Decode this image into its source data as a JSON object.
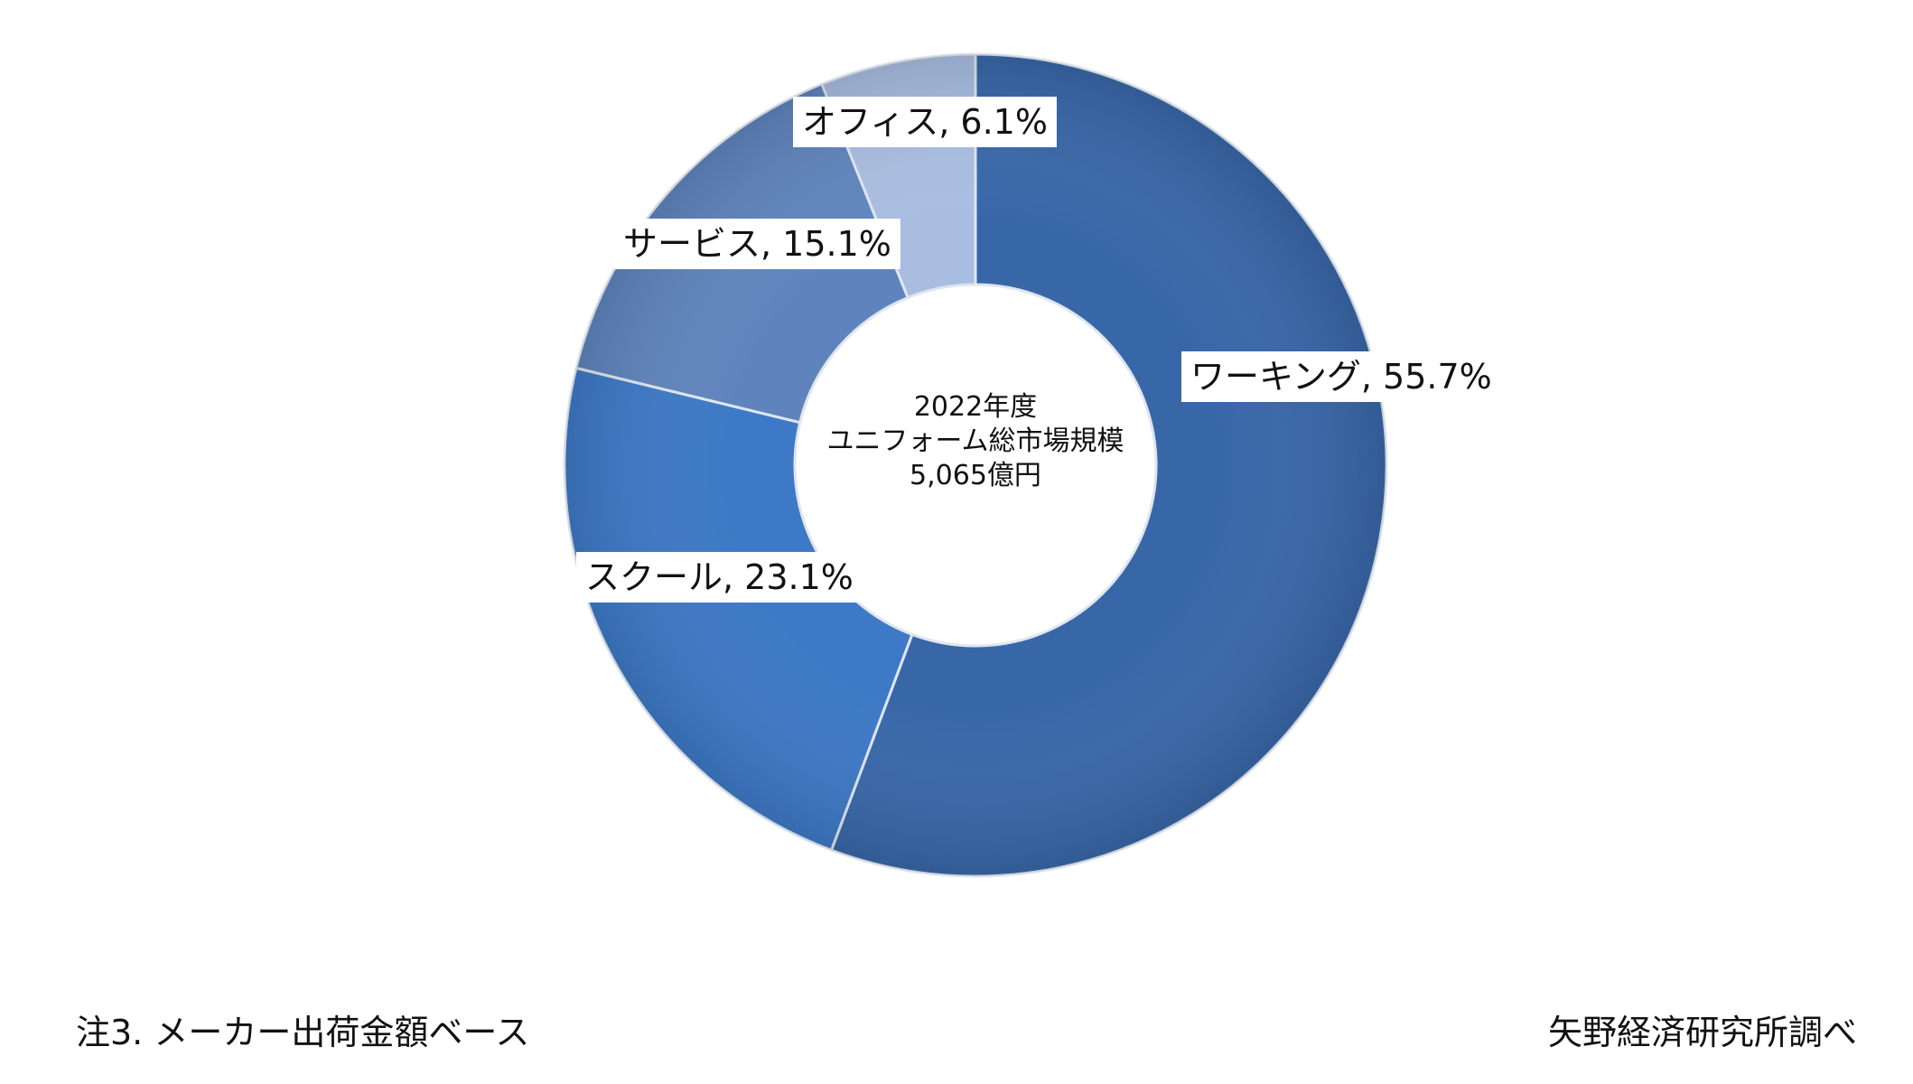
{
  "chart_data": {
    "type": "pie",
    "donut": true,
    "center_text": [
      "2022年度",
      "ユニフォーム総市場規模",
      "5,065億円"
    ],
    "slices": [
      {
        "label": "ワーキング",
        "value": 55.7,
        "display": "ワーキング, 55.7%",
        "color": "#3867a8"
      },
      {
        "label": "スクール",
        "value": 23.1,
        "display": "スクール, 23.1%",
        "color": "#3d79c6"
      },
      {
        "label": "サービス",
        "value": 15.1,
        "display": "サービス, 15.1%",
        "color": "#5f84bd"
      },
      {
        "label": "オフィス",
        "value": 6.1,
        "display": "オフィス, 6.1%",
        "color": "#a9bde1"
      }
    ],
    "start_angle": "top",
    "direction": "clockwise"
  },
  "footer": {
    "note": "注3. メーカー出荷金額ベース",
    "source": "矢野経済研究所調べ"
  }
}
